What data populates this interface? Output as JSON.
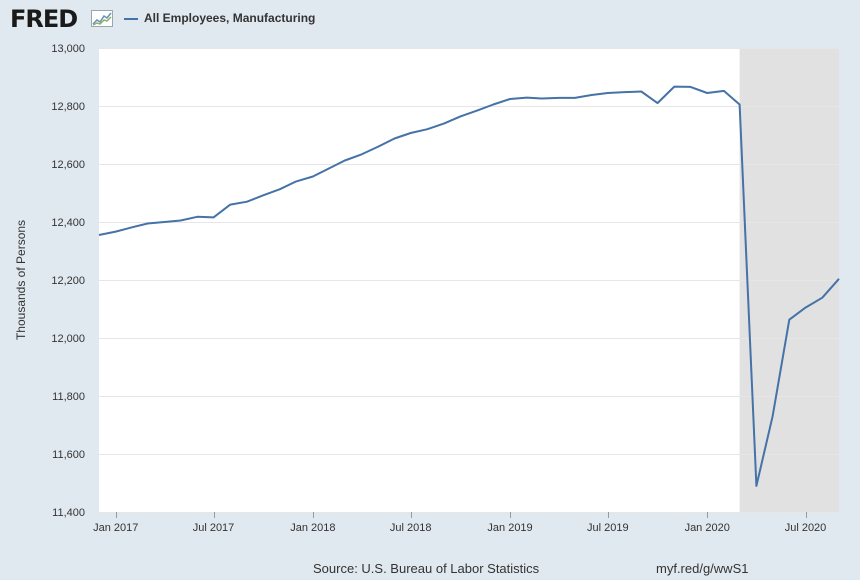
{
  "header": {
    "logo_text": "FRED",
    "legend_label": "All Employees, Manufacturing"
  },
  "colors": {
    "series": "#4572a7",
    "recession": "#e1e1e1",
    "grid": "#e6e6e6",
    "page_background": "#e1e9f0",
    "plot_background": "#ffffff"
  },
  "footer": {
    "source": "Source: U.S. Bureau of Labor Statistics",
    "url": "myf.red/g/wwS1"
  },
  "chart_data": {
    "type": "line",
    "title": "",
    "xlabel": "",
    "ylabel": "Thousands of Persons",
    "ylim": [
      11400,
      13000
    ],
    "xlim": [
      "2016-12-01",
      "2020-09-01"
    ],
    "grid": true,
    "legend": "top-left",
    "yticks": [
      11400,
      11600,
      11800,
      12000,
      12200,
      12400,
      12600,
      12800,
      13000
    ],
    "ytick_labels": [
      "11,400",
      "11,600",
      "11,800",
      "12,000",
      "12,200",
      "12,400",
      "12,600",
      "12,800",
      "13,000"
    ],
    "xticks": [
      "2017-01-01",
      "2017-07-01",
      "2018-01-01",
      "2018-07-01",
      "2019-01-01",
      "2019-07-01",
      "2020-01-01",
      "2020-07-01"
    ],
    "xtick_labels": [
      "Jan 2017",
      "Jul 2017",
      "Jan 2018",
      "Jul 2018",
      "Jan 2019",
      "Jul 2019",
      "Jan 2020",
      "Jul 2020"
    ],
    "recession": [
      "2020-03-01",
      "2020-09-01"
    ],
    "series": [
      {
        "name": "All Employees, Manufacturing",
        "x": [
          "2016-12-01",
          "2017-01-01",
          "2017-02-01",
          "2017-03-01",
          "2017-04-01",
          "2017-05-01",
          "2017-06-01",
          "2017-07-01",
          "2017-08-01",
          "2017-09-01",
          "2017-10-01",
          "2017-11-01",
          "2017-12-01",
          "2018-01-01",
          "2018-02-01",
          "2018-03-01",
          "2018-04-01",
          "2018-05-01",
          "2018-06-01",
          "2018-07-01",
          "2018-08-01",
          "2018-09-01",
          "2018-10-01",
          "2018-11-01",
          "2018-12-01",
          "2019-01-01",
          "2019-02-01",
          "2019-03-01",
          "2019-04-01",
          "2019-05-01",
          "2019-06-01",
          "2019-07-01",
          "2019-08-01",
          "2019-09-01",
          "2019-10-01",
          "2019-11-01",
          "2019-12-01",
          "2020-01-01",
          "2020-02-01",
          "2020-03-01",
          "2020-04-01",
          "2020-05-01",
          "2020-06-01",
          "2020-07-01",
          "2020-08-01",
          "2020-09-01"
        ],
        "values": [
          12355,
          12367,
          12382,
          12395,
          12400,
          12405,
          12418,
          12416,
          12460,
          12470,
          12492,
          12513,
          12540,
          12557,
          12586,
          12612,
          12633,
          12659,
          12688,
          12707,
          12720,
          12740,
          12764,
          12784,
          12805,
          12824,
          12829,
          12826,
          12828,
          12828,
          12838,
          12845,
          12848,
          12850,
          12810,
          12867,
          12866,
          12845,
          12852,
          12805,
          11490,
          11730,
          12063,
          12105,
          12139,
          12204
        ]
      }
    ]
  }
}
